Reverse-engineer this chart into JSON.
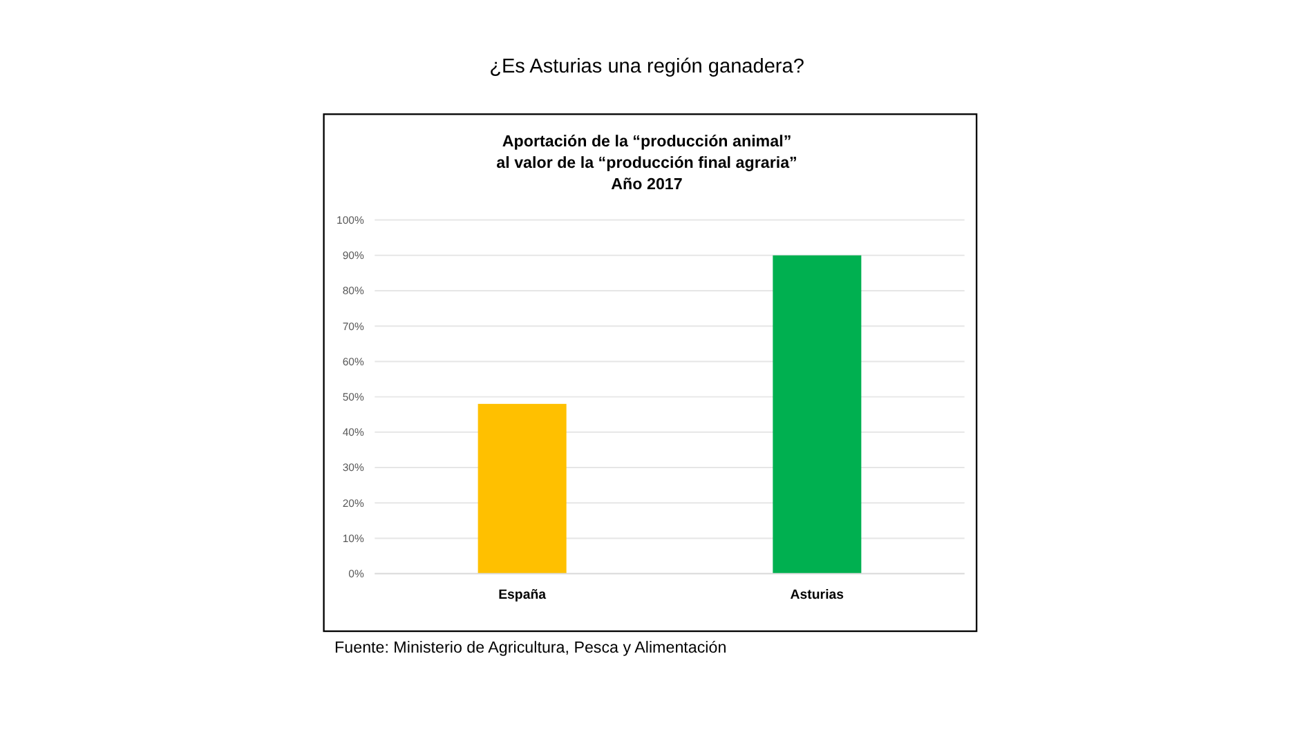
{
  "chart_data": {
    "type": "bar",
    "title": "¿Es Asturias una región ganadera?",
    "subtitle": "Aportación de la “producción animal”\nal valor de la “producción final agraria”\nAño 2017",
    "categories": [
      "España",
      "Asturias"
    ],
    "values": [
      48,
      90
    ],
    "colors": [
      "#ffc000",
      "#00b050"
    ],
    "ylim": [
      0,
      100
    ],
    "yticks": [
      {
        "value": 0,
        "label": "0%"
      },
      {
        "value": 10,
        "label": "10%"
      },
      {
        "value": 20,
        "label": "20%"
      },
      {
        "value": 30,
        "label": "30%"
      },
      {
        "value": 40,
        "label": "40%"
      },
      {
        "value": 50,
        "label": "50%"
      },
      {
        "value": 60,
        "label": "60%"
      },
      {
        "value": 70,
        "label": "70%"
      },
      {
        "value": 80,
        "label": "80%"
      },
      {
        "value": 90,
        "label": "90%"
      },
      {
        "value": 100,
        "label": "100%"
      }
    ],
    "grid": "y",
    "annotations": [
      "Fuente: Ministerio de Agricultura, Pesca y Alimentación"
    ]
  }
}
